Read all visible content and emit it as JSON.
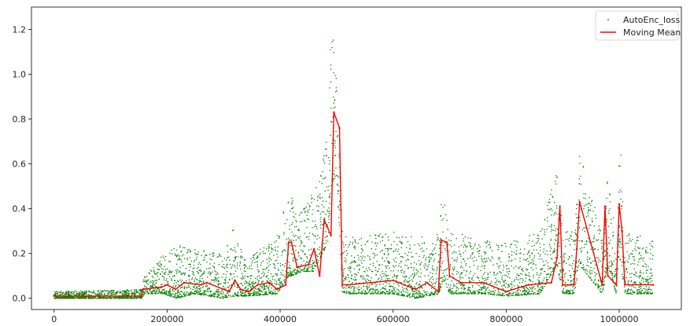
{
  "chart_data": {
    "type": "scatter",
    "title": "",
    "xlabel": "",
    "ylabel": "",
    "xlim": [
      -40000,
      1110000
    ],
    "ylim": [
      -0.05,
      1.3
    ],
    "x_ticks": [
      0,
      200000,
      400000,
      600000,
      800000,
      1000000
    ],
    "x_tick_labels": [
      "0",
      "200000",
      "400000",
      "600000",
      "800000",
      "1000000"
    ],
    "y_ticks": [
      0.0,
      0.2,
      0.4,
      0.6,
      0.8,
      1.0,
      1.2
    ],
    "y_tick_labels": [
      "0.0",
      "0.2",
      "0.4",
      "0.6",
      "0.8",
      "1.0",
      "1.2"
    ],
    "grid": false,
    "legend_position": "top-right",
    "series": [
      {
        "name": "AutoEnc_loss",
        "kind": "points",
        "color": "#008000",
        "envelope": {
          "x": [
            0,
            155000,
            160000,
            195000,
            215000,
            250000,
            300000,
            320000,
            340000,
            395000,
            415000,
            420000,
            440000,
            460000,
            475000,
            485000,
            490000,
            500000,
            510000,
            520000,
            560000,
            600000,
            640000,
            680000,
            690000,
            700000,
            760000,
            800000,
            860000,
            890000,
            900000,
            920000,
            930000,
            970000,
            980000,
            995000,
            1000000,
            1010000,
            1060000
          ],
          "low": [
            0.0,
            0.0,
            0.02,
            0.02,
            0.0,
            0.02,
            0.0,
            0.01,
            0.01,
            0.02,
            0.1,
            0.1,
            0.12,
            0.12,
            0.2,
            0.25,
            0.5,
            0.55,
            0.03,
            0.02,
            0.02,
            0.02,
            0.0,
            0.02,
            0.08,
            0.02,
            0.02,
            0.01,
            0.02,
            0.15,
            0.02,
            0.02,
            0.15,
            0.02,
            0.15,
            0.02,
            0.2,
            0.02,
            0.02
          ],
          "high": [
            0.03,
            0.04,
            0.1,
            0.2,
            0.24,
            0.22,
            0.2,
            0.33,
            0.17,
            0.28,
            0.48,
            0.45,
            0.4,
            0.5,
            0.62,
            0.75,
            1.25,
            1.15,
            0.3,
            0.28,
            0.28,
            0.3,
            0.27,
            0.3,
            0.57,
            0.3,
            0.26,
            0.25,
            0.3,
            0.58,
            0.3,
            0.3,
            0.7,
            0.27,
            0.55,
            0.3,
            0.81,
            0.3,
            0.26
          ]
        }
      },
      {
        "name": "Moving Mean",
        "kind": "line",
        "color": "#ff0000",
        "x": [
          0,
          80000,
          155000,
          157000,
          190000,
          200000,
          215000,
          230000,
          260000,
          270000,
          300000,
          310000,
          320000,
          330000,
          345000,
          360000,
          380000,
          395000,
          410000,
          415000,
          420000,
          430000,
          450000,
          460000,
          470000,
          478000,
          490000,
          495000,
          505000,
          510000,
          520000,
          560000,
          600000,
          620000,
          640000,
          660000,
          680000,
          685000,
          695000,
          700000,
          720000,
          760000,
          800000,
          840000,
          880000,
          890000,
          895000,
          900000,
          920000,
          925000,
          930000,
          970000,
          975000,
          980000,
          995000,
          1000000,
          1005000,
          1010000,
          1060000
        ],
        "y": [
          0.01,
          0.01,
          0.01,
          0.04,
          0.05,
          0.06,
          0.04,
          0.07,
          0.06,
          0.07,
          0.04,
          0.03,
          0.08,
          0.04,
          0.03,
          0.06,
          0.07,
          0.04,
          0.06,
          0.25,
          0.25,
          0.14,
          0.15,
          0.22,
          0.1,
          0.35,
          0.28,
          0.83,
          0.76,
          0.06,
          0.06,
          0.07,
          0.08,
          0.06,
          0.04,
          0.07,
          0.03,
          0.26,
          0.25,
          0.1,
          0.07,
          0.07,
          0.03,
          0.06,
          0.07,
          0.18,
          0.41,
          0.06,
          0.06,
          0.22,
          0.43,
          0.06,
          0.41,
          0.1,
          0.06,
          0.42,
          0.3,
          0.06,
          0.06
        ]
      }
    ]
  }
}
